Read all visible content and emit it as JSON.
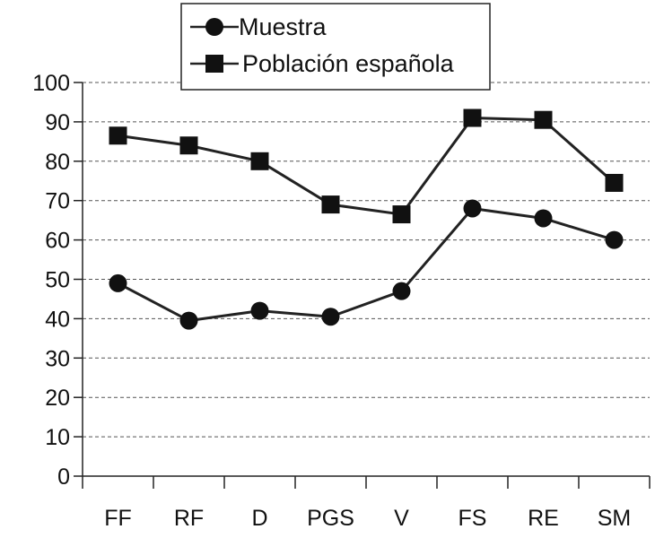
{
  "chart_data": {
    "type": "line",
    "categories": [
      "FF",
      "RF",
      "D",
      "PGS",
      "V",
      "FS",
      "RE",
      "SM"
    ],
    "series": [
      {
        "name": "Muestra",
        "marker": "circle",
        "values": [
          49,
          39.5,
          42,
          40.5,
          47,
          68,
          65.5,
          60
        ]
      },
      {
        "name": "Población española",
        "marker": "square",
        "values": [
          86.5,
          84,
          80,
          69,
          66.5,
          91,
          90.5,
          74.5
        ]
      }
    ],
    "ylim": [
      0,
      100
    ],
    "yticks": [
      "0",
      "10",
      "20",
      "30",
      "40",
      "50",
      "60",
      "70",
      "80",
      "90",
      "100"
    ],
    "grid": "horizontal dashed",
    "legend": {
      "placement": "top-center"
    },
    "colors": {
      "line": "#222222",
      "grid": "#555555"
    }
  }
}
